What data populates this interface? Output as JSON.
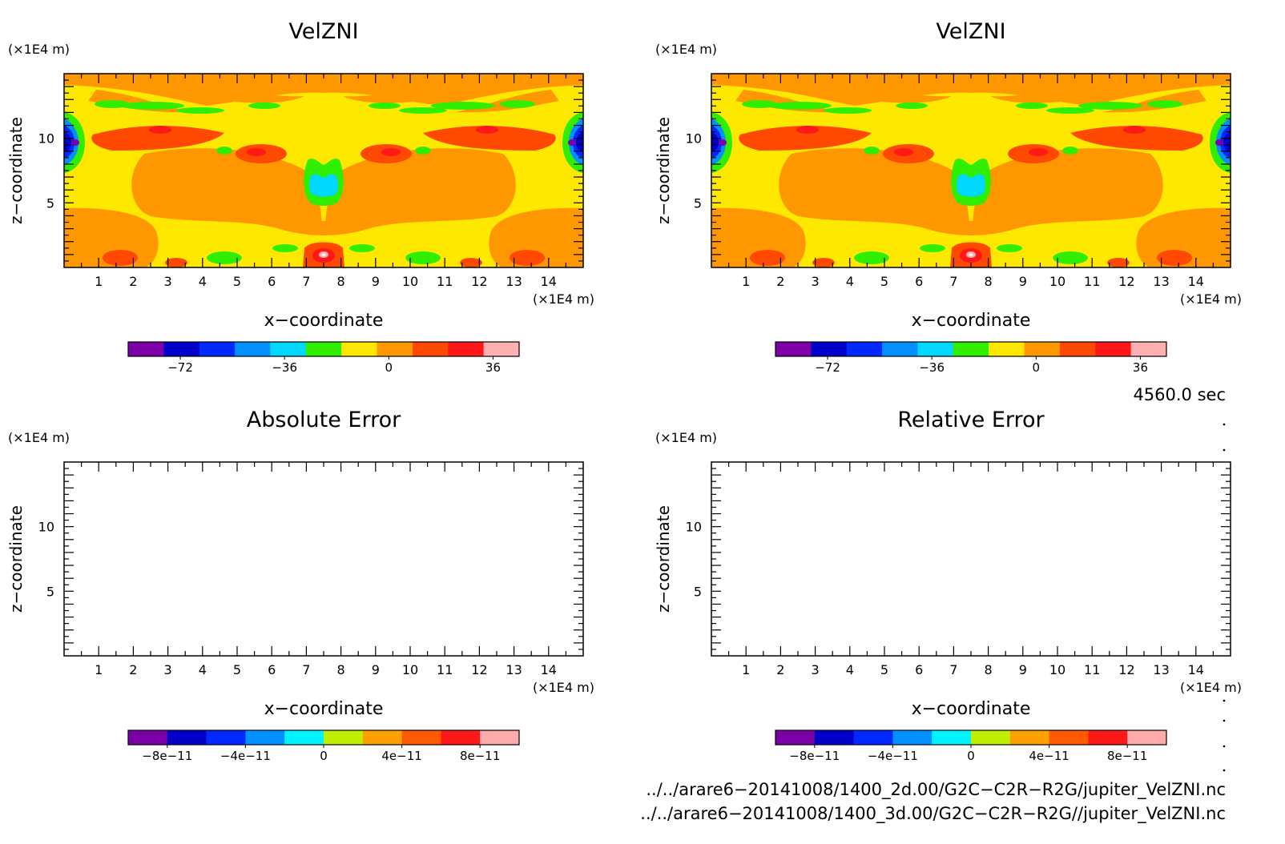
{
  "chart_data": [
    {
      "type": "heatmap",
      "title": "VelZNI",
      "xlabel": "x−coordinate",
      "ylabel": "z−coordinate",
      "xunit": "(×1E4 m)",
      "yunit": "(×1E4 m)",
      "xlim": [
        0,
        15
      ],
      "ylim": [
        0,
        15
      ],
      "xticks": [
        "1",
        "2",
        "3",
        "4",
        "5",
        "6",
        "7",
        "8",
        "9",
        "10",
        "11",
        "12",
        "13",
        "14"
      ],
      "yticks": [
        "5",
        "10"
      ],
      "colorbar": {
        "colors": [
          "#7b00a8",
          "#0000c8",
          "#0028ff",
          "#0090ff",
          "#00d8ff",
          "#30ee00",
          "#ffe800",
          "#ff9800",
          "#ff4800",
          "#ff1818",
          "#ffb0b0"
        ],
        "tick_labels": [
          "−72",
          "−36",
          "0",
          "36"
        ],
        "tick_values": [
          -72,
          -36,
          0,
          36
        ],
        "range": [
          -90,
          45
        ]
      }
    },
    {
      "type": "heatmap",
      "title": "VelZNI",
      "xlabel": "x−coordinate",
      "ylabel": "z−coordinate",
      "xunit": "(×1E4 m)",
      "yunit": "(×1E4 m)",
      "xlim": [
        0,
        15
      ],
      "ylim": [
        0,
        15
      ],
      "xticks": [
        "1",
        "2",
        "3",
        "4",
        "5",
        "6",
        "7",
        "8",
        "9",
        "10",
        "11",
        "12",
        "13",
        "14"
      ],
      "yticks": [
        "5",
        "10"
      ],
      "colorbar": {
        "colors": [
          "#7b00a8",
          "#0000c8",
          "#0028ff",
          "#0090ff",
          "#00d8ff",
          "#30ee00",
          "#ffe800",
          "#ff9800",
          "#ff4800",
          "#ff1818",
          "#ffb0b0"
        ],
        "tick_labels": [
          "−72",
          "−36",
          "0",
          "36"
        ],
        "tick_values": [
          -72,
          -36,
          0,
          36
        ],
        "range": [
          -90,
          45
        ]
      }
    },
    {
      "type": "heatmap",
      "title": "Absolute Error",
      "xlabel": "x−coordinate",
      "ylabel": "z−coordinate",
      "xunit": "(×1E4 m)",
      "yunit": "(×1E4 m)",
      "xlim": [
        0,
        15
      ],
      "ylim": [
        0,
        15
      ],
      "xticks": [
        "1",
        "2",
        "3",
        "4",
        "5",
        "6",
        "7",
        "8",
        "9",
        "10",
        "11",
        "12",
        "13",
        "14"
      ],
      "yticks": [
        "5",
        "10"
      ],
      "colorbar": {
        "colors": [
          "#7b00a8",
          "#0000c8",
          "#0028ff",
          "#0090ff",
          "#00f4ff",
          "#c0f000",
          "#ffa000",
          "#ff5a00",
          "#ff1818",
          "#ffaaaa"
        ],
        "tick_labels": [
          "−8e−11",
          "−4e−11",
          "0",
          "4e−11",
          "8e−11"
        ],
        "tick_values": [
          -8e-11,
          -4e-11,
          0,
          4e-11,
          8e-11
        ],
        "range": [
          -1e-10,
          1e-10
        ]
      }
    },
    {
      "type": "heatmap",
      "title": "Relative Error",
      "xlabel": "x−coordinate",
      "ylabel": "z−coordinate",
      "xunit": "(×1E4 m)",
      "yunit": "(×1E4 m)",
      "xlim": [
        0,
        15
      ],
      "ylim": [
        0,
        15
      ],
      "xticks": [
        "1",
        "2",
        "3",
        "4",
        "5",
        "6",
        "7",
        "8",
        "9",
        "10",
        "11",
        "12",
        "13",
        "14"
      ],
      "yticks": [
        "5",
        "10"
      ],
      "colorbar": {
        "colors": [
          "#7b00a8",
          "#0000c8",
          "#0028ff",
          "#0090ff",
          "#00f4ff",
          "#c0f000",
          "#ffa000",
          "#ff5a00",
          "#ff1818",
          "#ffaaaa"
        ],
        "tick_labels": [
          "−8e−11",
          "−4e−11",
          "0",
          "4e−11",
          "8e−11"
        ],
        "tick_values": [
          -8e-11,
          -4e-11,
          0,
          4e-11,
          8e-11
        ],
        "range": [
          -1e-10,
          1e-10
        ]
      }
    }
  ],
  "time_label": "4560.0 sec",
  "file_paths": [
    "../../arare6−20141008/1400_2d.00/G2C−C2R−R2G/jupiter_VelZNI.nc",
    "../../arare6−20141008/1400_3d.00/G2C−C2R−R2G//jupiter_VelZNI.nc"
  ]
}
